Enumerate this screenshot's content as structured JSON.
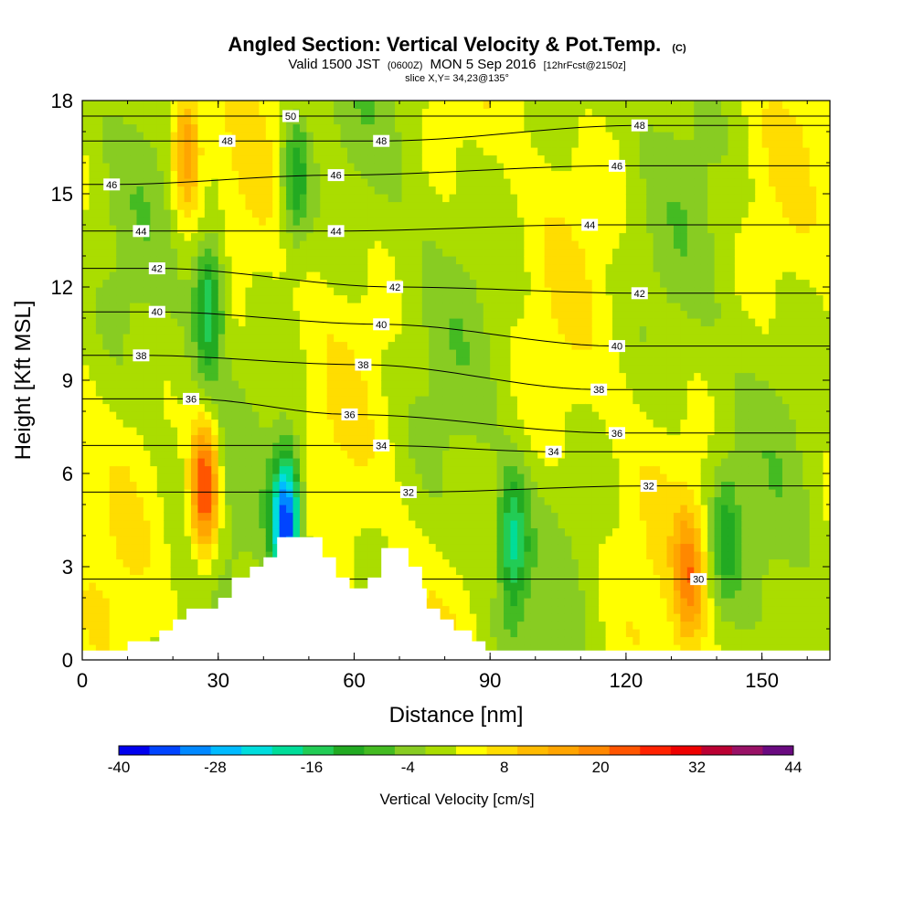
{
  "chart_data": {
    "type": "heatmap",
    "title": "Angled Section: Vertical Velocity & Pot.Temp.",
    "title_unit": "(C)",
    "subtitle_parts": [
      "Valid 1500 JST",
      "(0600Z)",
      "MON 5 Sep 2016",
      "[12hrFcst@2150z]"
    ],
    "slice_label": "slice X,Y= 34,23@135°",
    "xlabel": "Distance [nm]",
    "ylabel": "Height [Kft MSL]",
    "xlim": [
      0,
      165
    ],
    "ylim": [
      0,
      18
    ],
    "x_ticks": [
      "0",
      "30",
      "60",
      "90",
      "120",
      "150"
    ],
    "x_tick_values": [
      0,
      30,
      60,
      90,
      120,
      150
    ],
    "y_ticks": [
      "0",
      "3",
      "6",
      "9",
      "12",
      "15",
      "18"
    ],
    "y_tick_values": [
      0,
      3,
      6,
      9,
      12,
      15,
      18
    ],
    "colorbar": {
      "label": "Vertical Velocity [cm/s]",
      "min": -40,
      "max": 44,
      "step": 4,
      "tick_labels": [
        "-40",
        "-28",
        "-16",
        "-4",
        "8",
        "20",
        "32",
        "44"
      ],
      "colors": [
        "#0000ee",
        "#0044ff",
        "#0088ff",
        "#00bbff",
        "#00dddd",
        "#00dd99",
        "#22cc55",
        "#22aa22",
        "#44bb22",
        "#88cc22",
        "#aadd00",
        "#ffff00",
        "#ffdd00",
        "#ffbb00",
        "#ffa500",
        "#ff8800",
        "#ff5500",
        "#ff2200",
        "#ee0000",
        "#bb0033",
        "#991166",
        "#6a0a80"
      ]
    },
    "contours": {
      "variable": "Potential Temperature (C)",
      "labels": [
        {
          "text": "48",
          "x": 32,
          "y": 16.7
        },
        {
          "text": "50",
          "x": 46,
          "y": 17.5
        },
        {
          "text": "48",
          "x": 66,
          "y": 16.7
        },
        {
          "text": "48",
          "x": 123,
          "y": 17.2
        },
        {
          "text": "46",
          "x": 6.5,
          "y": 15.3
        },
        {
          "text": "46",
          "x": 56,
          "y": 15.6
        },
        {
          "text": "46",
          "x": 118,
          "y": 15.9
        },
        {
          "text": "44",
          "x": 13,
          "y": 13.8
        },
        {
          "text": "44",
          "x": 56,
          "y": 13.8
        },
        {
          "text": "44",
          "x": 112,
          "y": 14.0
        },
        {
          "text": "42",
          "x": 16.5,
          "y": 12.6
        },
        {
          "text": "42",
          "x": 69,
          "y": 12.0
        },
        {
          "text": "42",
          "x": 123,
          "y": 11.8
        },
        {
          "text": "40",
          "x": 16.5,
          "y": 11.2
        },
        {
          "text": "40",
          "x": 66,
          "y": 10.8
        },
        {
          "text": "40",
          "x": 118,
          "y": 10.1
        },
        {
          "text": "38",
          "x": 13,
          "y": 9.8
        },
        {
          "text": "38",
          "x": 62,
          "y": 9.5
        },
        {
          "text": "38",
          "x": 114,
          "y": 8.7
        },
        {
          "text": "36",
          "x": 24,
          "y": 8.4
        },
        {
          "text": "36",
          "x": 59,
          "y": 7.9
        },
        {
          "text": "36",
          "x": 118,
          "y": 7.3
        },
        {
          "text": "34",
          "x": 66,
          "y": 6.9
        },
        {
          "text": "34",
          "x": 104,
          "y": 6.7
        },
        {
          "text": "32",
          "x": 72,
          "y": 5.4
        },
        {
          "text": "32",
          "x": 125,
          "y": 5.6
        },
        {
          "text": "30",
          "x": 136,
          "y": 2.6
        }
      ]
    },
    "velocity_features": [
      {
        "x": 27,
        "y": 5.5,
        "value": 32
      },
      {
        "x": 45,
        "y": 4.5,
        "value": -36
      },
      {
        "x": 23,
        "y": 16.5,
        "value": 20
      },
      {
        "x": 28,
        "y": 11.5,
        "value": -16
      },
      {
        "x": 95,
        "y": 3.8,
        "value": -16
      },
      {
        "x": 134,
        "y": 2.7,
        "value": 20
      },
      {
        "x": 47,
        "y": 15.5,
        "value": -12
      },
      {
        "x": 142,
        "y": 4.0,
        "value": -8
      }
    ],
    "terrain_top": [
      [
        0,
        0.3
      ],
      [
        10,
        0.3
      ],
      [
        10,
        0.6
      ],
      [
        17,
        0.6
      ],
      [
        17,
        0.95
      ],
      [
        20,
        0.95
      ],
      [
        20,
        1.3
      ],
      [
        23,
        1.3
      ],
      [
        23,
        1.65
      ],
      [
        30,
        1.65
      ],
      [
        30,
        2.0
      ],
      [
        33,
        2.0
      ],
      [
        33,
        2.65
      ],
      [
        37,
        2.65
      ],
      [
        37,
        3.0
      ],
      [
        40,
        3.0
      ],
      [
        40,
        3.3
      ],
      [
        43,
        3.3
      ],
      [
        43,
        3.95
      ],
      [
        53,
        3.95
      ],
      [
        53,
        3.3
      ],
      [
        56,
        3.3
      ],
      [
        56,
        2.65
      ],
      [
        59,
        2.65
      ],
      [
        59,
        2.3
      ],
      [
        63,
        2.3
      ],
      [
        63,
        2.65
      ],
      [
        66,
        2.65
      ],
      [
        66,
        3.6
      ],
      [
        72,
        3.6
      ],
      [
        72,
        3.0
      ],
      [
        75,
        3.0
      ],
      [
        75,
        2.3
      ],
      [
        76,
        2.3
      ],
      [
        76,
        1.65
      ],
      [
        79,
        1.65
      ],
      [
        79,
        1.3
      ],
      [
        82,
        1.3
      ],
      [
        82,
        0.95
      ],
      [
        86,
        0.95
      ],
      [
        86,
        0.6
      ],
      [
        89,
        0.6
      ],
      [
        89,
        0.3
      ],
      [
        165,
        0.3
      ]
    ]
  }
}
